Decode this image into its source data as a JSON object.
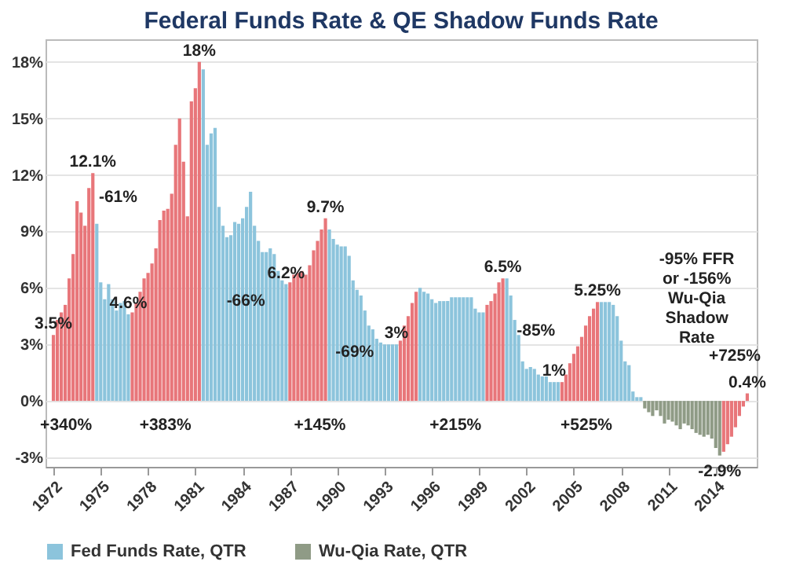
{
  "chart_data": {
    "type": "bar",
    "title": "Federal Funds Rate & QE Shadow Funds Rate",
    "x": [
      1972,
      1972.25,
      1972.5,
      1972.75,
      1973,
      1973.25,
      1973.5,
      1973.75,
      1974,
      1974.25,
      1974.5,
      1974.75,
      1975,
      1975.25,
      1975.5,
      1975.75,
      1976,
      1976.25,
      1976.5,
      1976.75,
      1977,
      1977.25,
      1977.5,
      1977.75,
      1978,
      1978.25,
      1978.5,
      1978.75,
      1979,
      1979.25,
      1979.5,
      1979.75,
      1980,
      1980.25,
      1980.5,
      1980.75,
      1981,
      1981.25,
      1981.5,
      1981.75,
      1982,
      1982.25,
      1982.5,
      1982.75,
      1983,
      1983.25,
      1983.5,
      1983.75,
      1984,
      1984.25,
      1984.5,
      1984.75,
      1985,
      1985.25,
      1985.5,
      1985.75,
      1986,
      1986.25,
      1986.5,
      1986.75,
      1987,
      1987.25,
      1987.5,
      1987.75,
      1988,
      1988.25,
      1988.5,
      1988.75,
      1989,
      1989.25,
      1989.5,
      1989.75,
      1990,
      1990.25,
      1990.5,
      1990.75,
      1991,
      1991.25,
      1991.5,
      1991.75,
      1992,
      1992.25,
      1992.5,
      1992.75,
      1993,
      1993.25,
      1993.5,
      1993.75,
      1994,
      1994.25,
      1994.5,
      1994.75,
      1995,
      1995.25,
      1995.5,
      1995.75,
      1996,
      1996.25,
      1996.5,
      1996.75,
      1997,
      1997.25,
      1997.5,
      1997.75,
      1998,
      1998.25,
      1998.5,
      1998.75,
      1999,
      1999.25,
      1999.5,
      1999.75,
      2000,
      2000.25,
      2000.5,
      2000.75,
      2001,
      2001.25,
      2001.5,
      2001.75,
      2002,
      2002.25,
      2002.5,
      2002.75,
      2003,
      2003.25,
      2003.5,
      2003.75,
      2004,
      2004.25,
      2004.5,
      2004.75,
      2005,
      2005.25,
      2005.5,
      2005.75,
      2006,
      2006.25,
      2006.5,
      2006.75,
      2007,
      2007.25,
      2007.5,
      2007.75,
      2008,
      2008.25,
      2008.5,
      2008.75,
      2009,
      2009.25,
      2009.5,
      2009.75,
      2010,
      2010.25,
      2010.5,
      2010.75,
      2011,
      2011.25,
      2011.5,
      2011.75,
      2012,
      2012.25,
      2012.5,
      2012.75,
      2013,
      2013.25,
      2013.5,
      2013.75,
      2014,
      2014.25,
      2014.5,
      2014.75,
      2015,
      2015.25,
      2015.5,
      2015.75,
      2016
    ],
    "series": [
      {
        "name": "Fed Funds Rate, QTR",
        "color": "#8cc4dc",
        "values": [
          null,
          null,
          null,
          null,
          null,
          null,
          null,
          null,
          null,
          null,
          null,
          9.4,
          6.3,
          5.4,
          6.2,
          5.4,
          4.8,
          5.2,
          5.3,
          4.6,
          null,
          null,
          null,
          null,
          null,
          null,
          null,
          null,
          null,
          null,
          null,
          null,
          null,
          null,
          null,
          null,
          null,
          null,
          17.6,
          13.6,
          14.2,
          14.5,
          10.3,
          9.3,
          8.7,
          8.8,
          9.5,
          9.4,
          9.7,
          10.3,
          11.1,
          9.3,
          8.5,
          7.9,
          7.9,
          8.1,
          7.8,
          6.9,
          6.4,
          6.2,
          null,
          null,
          null,
          null,
          null,
          null,
          null,
          null,
          null,
          null,
          9.1,
          8.6,
          8.3,
          8.2,
          8.2,
          7.7,
          6.4,
          5.9,
          5.6,
          4.8,
          4.0,
          3.8,
          3.3,
          3.1,
          3.0,
          3.0,
          3.0,
          3.0,
          null,
          null,
          null,
          null,
          null,
          6.0,
          5.8,
          5.7,
          5.4,
          5.2,
          5.3,
          5.3,
          5.3,
          5.5,
          5.5,
          5.5,
          5.5,
          5.5,
          5.5,
          4.9,
          4.7,
          4.7,
          null,
          null,
          null,
          null,
          null,
          6.5,
          5.6,
          4.3,
          3.5,
          2.1,
          1.7,
          1.8,
          1.7,
          1.4,
          1.3,
          1.3,
          1.0,
          1.0,
          1.0,
          null,
          null,
          null,
          null,
          null,
          null,
          null,
          null,
          null,
          null,
          5.25,
          5.25,
          5.25,
          5.1,
          4.5,
          3.2,
          2.1,
          1.9,
          0.5,
          0.2,
          0.2,
          null,
          null,
          null,
          null,
          null,
          null,
          null,
          null,
          null,
          null,
          null,
          null,
          null,
          null,
          null,
          null,
          null,
          null,
          null,
          null,
          null,
          null,
          null,
          null,
          null,
          null,
          null
        ]
      },
      {
        "color": "#e8767a",
        "values": [
          3.5,
          4.3,
          4.7,
          5.1,
          6.5,
          7.8,
          10.6,
          10.0,
          9.3,
          11.3,
          12.1,
          null,
          null,
          null,
          null,
          null,
          null,
          null,
          null,
          null,
          4.7,
          5.2,
          5.8,
          6.5,
          6.8,
          7.3,
          8.1,
          9.6,
          10.1,
          10.2,
          11.0,
          13.6,
          15.0,
          12.7,
          9.8,
          15.9,
          16.6,
          18,
          null,
          null,
          null,
          null,
          null,
          null,
          null,
          null,
          null,
          null,
          null,
          null,
          null,
          null,
          null,
          null,
          null,
          null,
          null,
          null,
          null,
          null,
          6.3,
          6.7,
          6.8,
          6.9,
          6.7,
          7.2,
          8.0,
          8.5,
          9.1,
          9.7,
          null,
          null,
          null,
          null,
          null,
          null,
          null,
          null,
          null,
          null,
          null,
          null,
          null,
          null,
          null,
          null,
          null,
          null,
          3.2,
          4.0,
          4.5,
          5.2,
          5.8,
          null,
          null,
          null,
          null,
          null,
          null,
          null,
          null,
          null,
          null,
          null,
          null,
          null,
          null,
          null,
          null,
          null,
          5.1,
          5.3,
          5.7,
          6.3,
          6.5,
          null,
          null,
          null,
          null,
          null,
          null,
          null,
          null,
          null,
          null,
          null,
          null,
          null,
          null,
          1.0,
          1.4,
          2.0,
          2.5,
          2.9,
          3.4,
          4.0,
          4.5,
          4.9,
          5.25,
          null,
          null,
          null,
          null,
          null,
          null,
          null,
          null,
          null,
          null,
          null,
          null,
          null,
          null,
          null,
          null,
          null,
          null,
          null,
          null,
          null,
          null,
          null,
          null,
          null,
          null,
          null,
          null,
          null,
          null,
          null,
          -2.7,
          -2.3,
          -1.9,
          -1.4,
          -0.8,
          -0.3,
          0.4
        ]
      },
      {
        "name": "Wu-Qia Rate, QTR",
        "color": "#8f9b86",
        "values": [
          null,
          null,
          null,
          null,
          null,
          null,
          null,
          null,
          null,
          null,
          null,
          null,
          null,
          null,
          null,
          null,
          null,
          null,
          null,
          null,
          null,
          null,
          null,
          null,
          null,
          null,
          null,
          null,
          null,
          null,
          null,
          null,
          null,
          null,
          null,
          null,
          null,
          null,
          null,
          null,
          null,
          null,
          null,
          null,
          null,
          null,
          null,
          null,
          null,
          null,
          null,
          null,
          null,
          null,
          null,
          null,
          null,
          null,
          null,
          null,
          null,
          null,
          null,
          null,
          null,
          null,
          null,
          null,
          null,
          null,
          null,
          null,
          null,
          null,
          null,
          null,
          null,
          null,
          null,
          null,
          null,
          null,
          null,
          null,
          null,
          null,
          null,
          null,
          null,
          null,
          null,
          null,
          null,
          null,
          null,
          null,
          null,
          null,
          null,
          null,
          null,
          null,
          null,
          null,
          null,
          null,
          null,
          null,
          null,
          null,
          null,
          null,
          null,
          null,
          null,
          null,
          null,
          null,
          null,
          null,
          null,
          null,
          null,
          null,
          null,
          null,
          null,
          null,
          null,
          null,
          null,
          null,
          null,
          null,
          null,
          null,
          null,
          null,
          null,
          null,
          null,
          null,
          null,
          null,
          null,
          null,
          null,
          null,
          null,
          null,
          -0.4,
          -0.6,
          -0.8,
          -0.5,
          -0.8,
          -1.2,
          -1.0,
          -1.1,
          -1.3,
          -1.5,
          -1.2,
          -1.3,
          -1.5,
          -1.7,
          -1.8,
          -1.9,
          -1.8,
          -2.0,
          -2.5,
          -2.9,
          null,
          null,
          null,
          null,
          null,
          null,
          null
        ]
      }
    ],
    "xlim": [
      1971.5,
      2016.6
    ],
    "xticks": [
      1972,
      1975,
      1978,
      1981,
      1984,
      1987,
      1990,
      1993,
      1996,
      1999,
      2002,
      2005,
      2008,
      2011,
      2014
    ],
    "ylim": [
      -3.5,
      19.2
    ],
    "yticks": [
      {
        "value": -3,
        "label": "-3%"
      },
      {
        "value": 0,
        "label": "0%"
      },
      {
        "value": 3,
        "label": "3%"
      },
      {
        "value": 6,
        "label": "6%"
      },
      {
        "value": 9,
        "label": "9%"
      },
      {
        "value": 12,
        "label": "12%"
      },
      {
        "value": 15,
        "label": "15%"
      },
      {
        "value": 18,
        "label": "18%"
      }
    ],
    "grid": "y",
    "legend": "bottom",
    "annotations": [
      {
        "text": "12.1%",
        "x": 1974.5,
        "y": 12.1
      },
      {
        "text": "18%",
        "x": 1981.25,
        "y": 18
      },
      {
        "text": "9.7%",
        "x": 1989.25,
        "y": 9.7
      },
      {
        "text": "6.2%",
        "x": 1986.75,
        "y": 6.2
      },
      {
        "text": "4.6%",
        "x": 1976.75,
        "y": 4.6
      },
      {
        "text": "3.5%",
        "x": 1972,
        "y": 3.5
      },
      {
        "text": "3%",
        "x": 1993.75,
        "y": 3.0
      },
      {
        "text": "6.5%",
        "x": 2000.5,
        "y": 6.5
      },
      {
        "text": "1%",
        "x": 2003.75,
        "y": 1.0
      },
      {
        "text": "5.25%",
        "x": 2006.5,
        "y": 5.25
      },
      {
        "text": "0.4%",
        "x": 2016,
        "y": 0.4
      },
      {
        "text": "-2.9%",
        "x": 2014.25,
        "y": -2.9
      },
      "-61%",
      "-66%",
      "-69%",
      "-85%",
      "-95% FFR or -156% Wu-Qia Shadow Rate",
      "+340%",
      "+383%",
      "+145%",
      "+215%",
      "+525%",
      "+725%"
    ]
  }
}
